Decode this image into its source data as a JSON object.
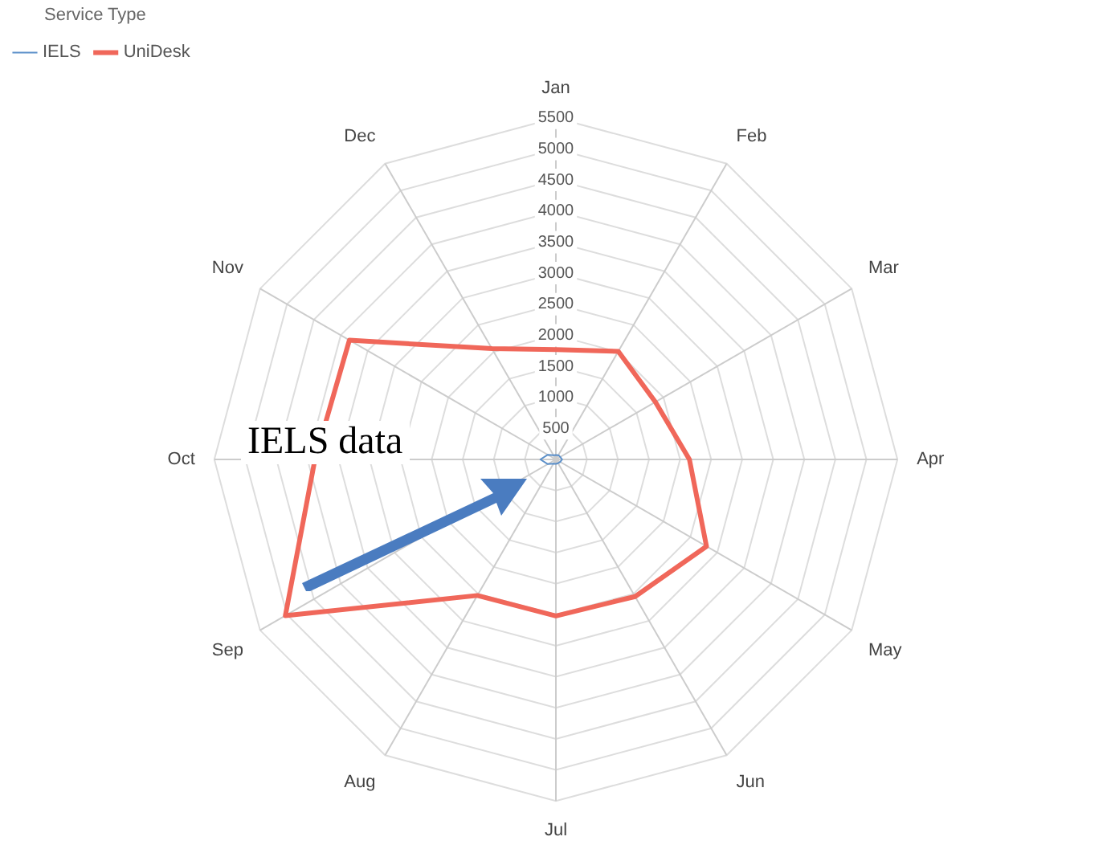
{
  "chart_data": {
    "type": "radar",
    "legend_title": "Service Type",
    "categories": [
      "Jan",
      "Feb",
      "Mar",
      "Apr",
      "May",
      "Jun",
      "Jul",
      "Aug",
      "Sep",
      "Oct",
      "Nov",
      "Dec"
    ],
    "series": [
      {
        "name": "IELS",
        "color": "#5b8fc9",
        "values": [
          70,
          80,
          80,
          100,
          80,
          70,
          70,
          80,
          150,
          250,
          150,
          80
        ]
      },
      {
        "name": "UniDesk",
        "color": "#f0675a",
        "values": [
          1770,
          2010,
          1850,
          2150,
          2800,
          2550,
          2520,
          2530,
          5030,
          3880,
          3840,
          2060
        ]
      }
    ],
    "ylim": [
      0,
      5500
    ],
    "yticks": [
      500,
      1000,
      1500,
      2000,
      2500,
      3000,
      3500,
      4000,
      4500,
      5000,
      5500
    ],
    "grid": true,
    "legend": "top left",
    "marker": "none",
    "line_style": "solid",
    "annotations": [
      "IELS data"
    ]
  }
}
